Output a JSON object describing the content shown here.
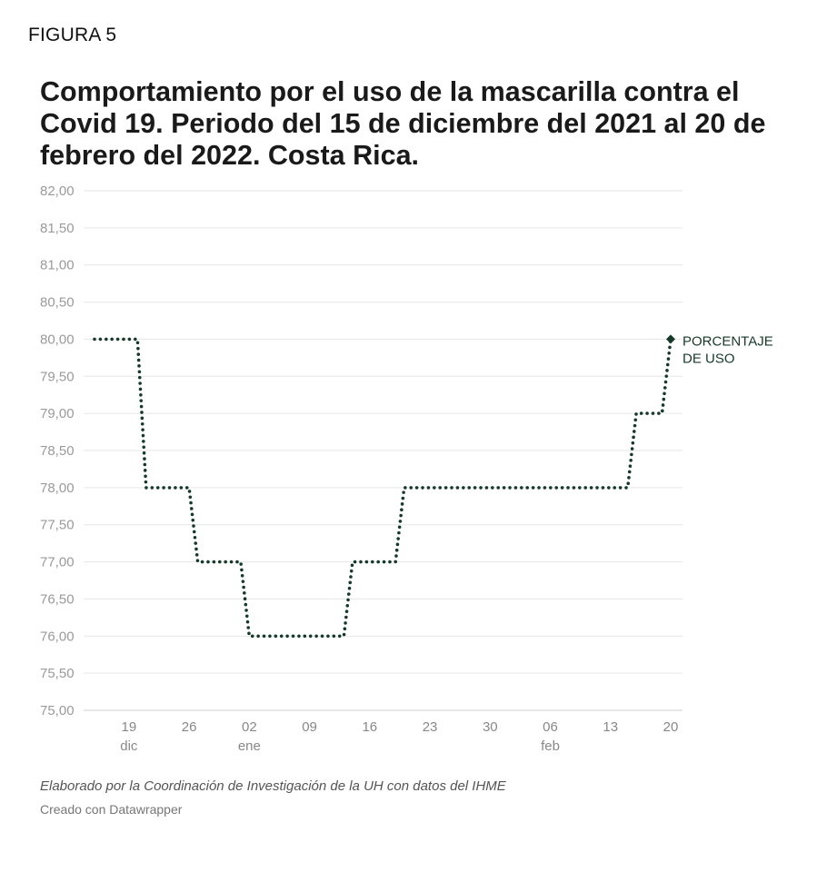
{
  "figure_label": "FIGURA 5",
  "title": "Comportamiento por el uso de la mascarilla contra el Covid 19. Periodo del 15 de diciembre del 2021 al 20 de febrero del 2022. Costa Rica.",
  "footer": {
    "note": "Elaborado por la Coordinación de Investigación de la UH con datos del IHME",
    "credit": "Creado con Datawrapper"
  },
  "colors": {
    "line": "#17392a",
    "grid": "#e6e6e6",
    "tick_text": "#9a9a9a",
    "x_tick_text": "#888888",
    "label_text": "#17392a"
  },
  "chart_data": {
    "type": "line",
    "title": "Comportamiento por el uso de la mascarilla contra el Covid 19. Periodo del 15 de diciembre del 2021 al 20 de febrero del 2022. Costa Rica.",
    "xlabel": "",
    "ylabel": "",
    "line_style": "dotted",
    "x_range": [
      "2021-12-15",
      "2022-02-20"
    ],
    "ylim": [
      75,
      82
    ],
    "y_ticks": [
      "82,00",
      "81,50",
      "81,00",
      "80,50",
      "80,00",
      "79,50",
      "79,00",
      "78,50",
      "78,00",
      "77,50",
      "77,00",
      "76,50",
      "76,00",
      "75,50",
      "75,00"
    ],
    "y_tick_values": [
      82,
      81.5,
      81,
      80.5,
      80,
      79.5,
      79,
      78.5,
      78,
      77.5,
      77,
      76.5,
      76,
      75.5,
      75
    ],
    "x_ticks": [
      {
        "date": "2021-12-19",
        "label": "19",
        "sub": "dic"
      },
      {
        "date": "2021-12-26",
        "label": "26",
        "sub": ""
      },
      {
        "date": "2022-01-02",
        "label": "02",
        "sub": "ene"
      },
      {
        "date": "2022-01-09",
        "label": "09",
        "sub": ""
      },
      {
        "date": "2022-01-16",
        "label": "16",
        "sub": ""
      },
      {
        "date": "2022-01-23",
        "label": "23",
        "sub": ""
      },
      {
        "date": "2022-01-30",
        "label": "30",
        "sub": ""
      },
      {
        "date": "2022-02-06",
        "label": "06",
        "sub": "feb"
      },
      {
        "date": "2022-02-13",
        "label": "13",
        "sub": ""
      },
      {
        "date": "2022-02-20",
        "label": "20",
        "sub": ""
      }
    ],
    "series": [
      {
        "name": "PORCENTAJE DE USO",
        "label_lines": [
          "PORCENTAJE",
          "DE USO"
        ],
        "x": [
          "2021-12-15",
          "2021-12-20",
          "2021-12-21",
          "2021-12-26",
          "2021-12-27",
          "2022-01-01",
          "2022-01-02",
          "2022-01-13",
          "2022-01-14",
          "2022-01-19",
          "2022-01-20",
          "2022-02-15",
          "2022-02-16",
          "2022-02-19",
          "2022-02-20"
        ],
        "values": [
          80,
          80,
          78,
          78,
          77,
          77,
          76,
          76,
          77,
          77,
          78,
          78,
          79,
          79,
          80
        ]
      }
    ]
  }
}
